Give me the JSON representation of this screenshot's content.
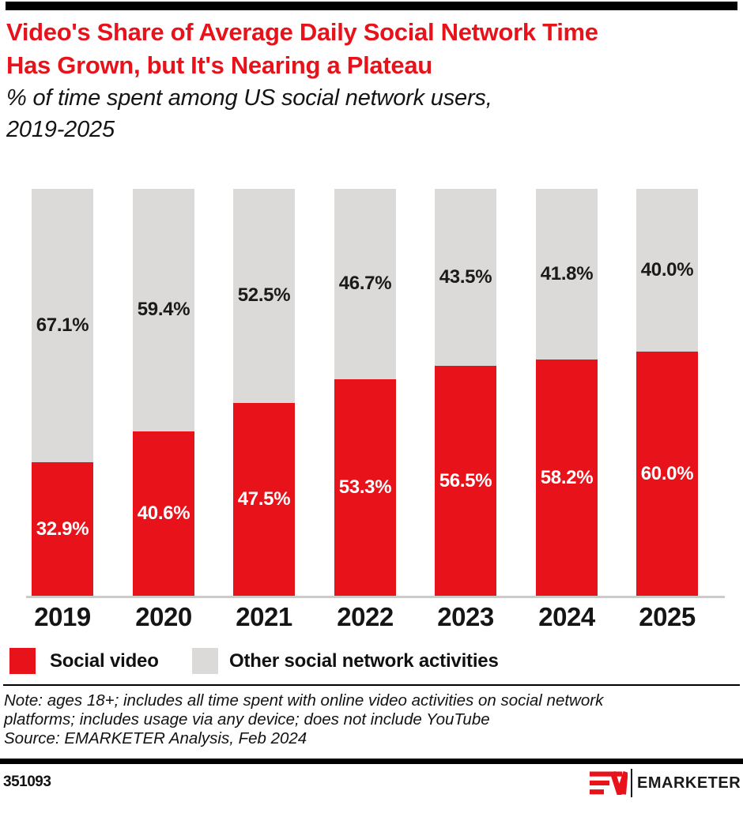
{
  "header": {
    "title": "Video's Share of Average Daily Social Network Time\nHas Grown, but It's Nearing a Plateau",
    "subtitle": "% of time spent among US social network users,\n2019-2025"
  },
  "colors": {
    "brand_red": "#E8121B",
    "bar_gray": "#DBDAD8",
    "axis_line": "#CBCBCA",
    "text_dark": "#1A1A1A",
    "label_light": "#FFFFFF",
    "rule_black": "#000000"
  },
  "chart_data": {
    "type": "bar",
    "stacked": true,
    "categories": [
      "2019",
      "2020",
      "2021",
      "2022",
      "2023",
      "2024",
      "2025"
    ],
    "series": [
      {
        "name": "Social video",
        "color": "#E8121B",
        "values": [
          32.9,
          40.6,
          47.5,
          53.3,
          56.5,
          58.2,
          60.0
        ]
      },
      {
        "name": "Other social network activities",
        "color": "#DBDAD8",
        "values": [
          67.1,
          59.4,
          52.5,
          46.7,
          43.5,
          41.8,
          40.0
        ]
      }
    ],
    "value_suffix": "%",
    "value_decimals": 1,
    "ylim": [
      0,
      100
    ],
    "grid": false,
    "legend_position": "bottom",
    "title": "Video's Share of Average Daily Social Network Time Has Grown, but It's Nearing a Plateau",
    "xlabel": "",
    "ylabel": "% of time spent among US social network users"
  },
  "legend": {
    "items": [
      {
        "label": "Social video",
        "color": "#E8121B"
      },
      {
        "label": "Other social network activities",
        "color": "#DBDAD8"
      }
    ]
  },
  "notes": {
    "note": "Note: ages 18+; includes all time spent with online video activities on social network\nplatforms; includes usage via any device; does not include YouTube",
    "source": "Source: EMARKETER Analysis, Feb 2024"
  },
  "footer": {
    "chart_id": "351093",
    "brand": "EMARKETER",
    "logo_icon": "emarketer-em-monogram-icon"
  }
}
